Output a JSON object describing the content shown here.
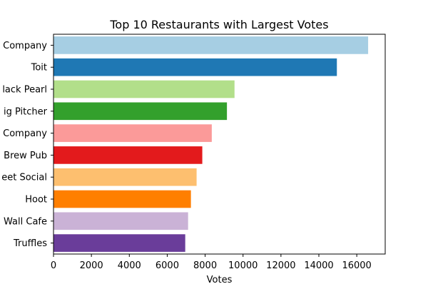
{
  "chart_data": {
    "type": "bar",
    "orientation": "horizontal",
    "title": "Top 10 Restaurants with Largest Votes",
    "xlabel": "Votes",
    "ylabel": "",
    "categories": [
      "Company",
      "Toit",
      "lack Pearl",
      "ig Pitcher",
      "Company",
      "Brew Pub",
      "eet Social",
      "Hoot",
      "Wall Cafe",
      "Truffles"
    ],
    "values": [
      16600,
      14950,
      9550,
      9150,
      8350,
      7850,
      7550,
      7250,
      7100,
      6950
    ],
    "colors": [
      "#a6cee3",
      "#1f78b4",
      "#b2df8a",
      "#33a02c",
      "#fb9a99",
      "#e31a1c",
      "#fdbf6f",
      "#ff7f00",
      "#cab2d6",
      "#6a3d9a"
    ],
    "xlim": [
      0,
      17500
    ],
    "xticks": [
      0,
      2000,
      4000,
      6000,
      8000,
      10000,
      12000,
      14000,
      16000
    ],
    "grid": false,
    "legend": "none"
  }
}
